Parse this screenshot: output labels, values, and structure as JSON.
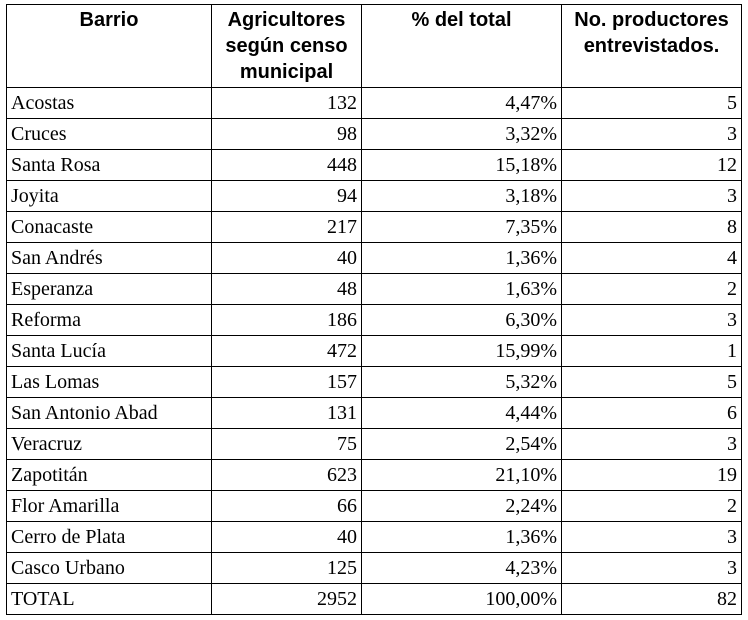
{
  "table": {
    "headers": [
      "Barrio",
      "Agricultores según censo municipal",
      "% del total",
      "No. productores entrevistados."
    ],
    "rows": [
      [
        "Acostas",
        "132",
        "4,47%",
        "5"
      ],
      [
        "Cruces",
        "98",
        "3,32%",
        "3"
      ],
      [
        "Santa Rosa",
        "448",
        "15,18%",
        "12"
      ],
      [
        "Joyita",
        "94",
        "3,18%",
        "3"
      ],
      [
        "Conacaste",
        "217",
        "7,35%",
        "8"
      ],
      [
        "San Andrés",
        "40",
        "1,36%",
        "4"
      ],
      [
        "Esperanza",
        "48",
        "1,63%",
        "2"
      ],
      [
        "Reforma",
        "186",
        "6,30%",
        "3"
      ],
      [
        "Santa Lucía",
        "472",
        "15,99%",
        "1"
      ],
      [
        "Las Lomas",
        "157",
        "5,32%",
        "5"
      ],
      [
        "San Antonio Abad",
        "131",
        "4,44%",
        "6"
      ],
      [
        "Veracruz",
        "75",
        "2,54%",
        "3"
      ],
      [
        "Zapotitán",
        "623",
        "21,10%",
        "19"
      ],
      [
        "Flor Amarilla",
        "66",
        "2,24%",
        "2"
      ],
      [
        "Cerro de Plata",
        "40",
        "1,36%",
        "3"
      ],
      [
        "Casco Urbano",
        "125",
        "4,23%",
        "3"
      ],
      [
        "TOTAL",
        "2952",
        "100,00%",
        "82"
      ]
    ]
  }
}
